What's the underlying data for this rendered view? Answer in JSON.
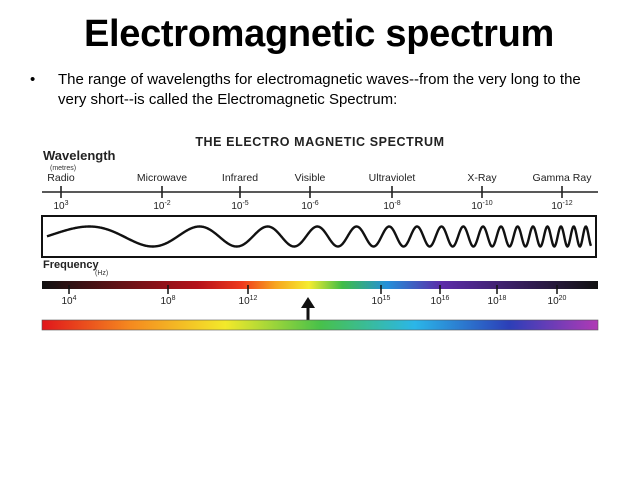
{
  "slide": {
    "title": "Electromagnetic spectrum",
    "bullet": "The range of wavelengths for electromagnetic waves--from the very long to the very short--is called the Electromagnetic Spectrum:"
  },
  "diagram": {
    "title": "THE ELECTRO MAGNETIC SPECTRUM",
    "wavelength_label": "Wavelength",
    "wavelength_unit": "(metres)",
    "frequency_label": "Frequency",
    "frequency_unit": "(Hz)",
    "regions": [
      {
        "name": "Radio",
        "wavelength": "10",
        "exp": "3"
      },
      {
        "name": "Microwave",
        "wavelength": "10",
        "exp": "-2"
      },
      {
        "name": "Infrared",
        "wavelength": "10",
        "exp": "-5"
      },
      {
        "name": "Visible",
        "wavelength": "10",
        "exp": "-6"
      },
      {
        "name": "Ultraviolet",
        "wavelength": "10",
        "exp": "-8"
      },
      {
        "name": "X-Ray",
        "wavelength": "10",
        "exp": "-10"
      },
      {
        "name": "Gamma Ray",
        "wavelength": "10",
        "exp": "-12"
      }
    ],
    "frequencies": [
      {
        "base": "10",
        "exp": "4"
      },
      {
        "base": "10",
        "exp": "8"
      },
      {
        "base": "10",
        "exp": "12"
      },
      {
        "base": "10",
        "exp": "15"
      },
      {
        "base": "10",
        "exp": "16"
      },
      {
        "base": "10",
        "exp": "18"
      },
      {
        "base": "10",
        "exp": "20"
      }
    ]
  }
}
